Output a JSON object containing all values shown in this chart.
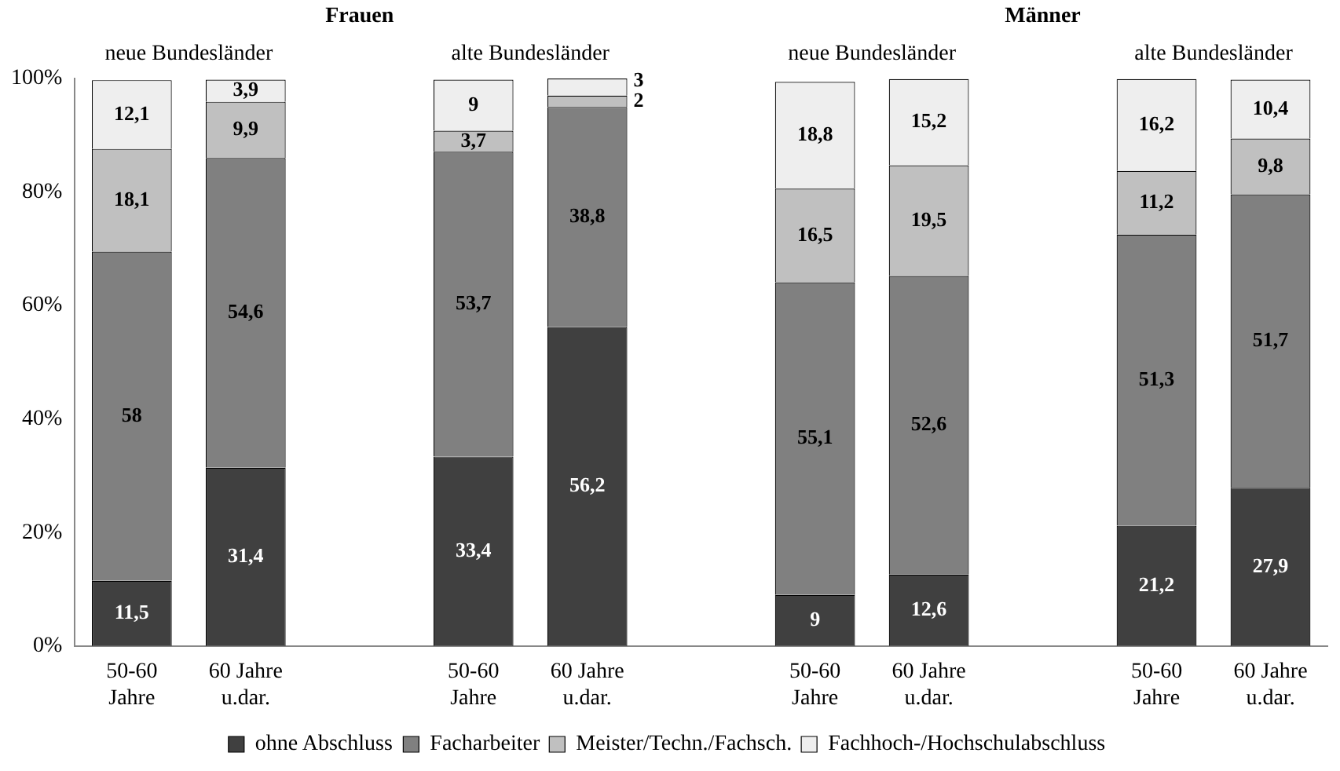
{
  "chart_data": {
    "type": "bar",
    "stacked": true,
    "categories": [
      "50-60 Jahre",
      "60 Jahre u.dar.",
      null,
      "50-60 Jahre",
      "60 Jahre u.dar.",
      null,
      "50-60 Jahre",
      "60 Jahre u.dar.",
      null,
      "50-60 Jahre",
      "60 Jahre u.dar."
    ],
    "series": [
      {
        "name": "ohne Abschluss",
        "color": "#404040",
        "values": [
          11.5,
          31.4,
          null,
          33.4,
          56.2,
          null,
          9,
          12.6,
          null,
          21.2,
          27.9
        ],
        "value_labels": [
          "11,5",
          "31,4",
          null,
          "33,4",
          "56,2",
          null,
          "9",
          "12,6",
          null,
          "21,2",
          "27,9"
        ]
      },
      {
        "name": "Facharbeiter",
        "color": "#808080",
        "values": [
          58,
          54.6,
          null,
          53.7,
          38.8,
          null,
          55.1,
          52.6,
          null,
          51.3,
          51.7
        ],
        "value_labels": [
          "58",
          "54,6",
          null,
          "53,7",
          "38,8",
          null,
          "55,1",
          "52,6",
          null,
          "51,3",
          "51,7"
        ]
      },
      {
        "name": "Meister/Techn./Fachsch.",
        "color": "#c0c0c0",
        "values": [
          18.1,
          9.9,
          null,
          3.7,
          2,
          null,
          16.5,
          19.5,
          null,
          11.2,
          9.8
        ],
        "value_labels": [
          "18,1",
          "9,9",
          null,
          "3,7",
          "2",
          null,
          "16,5",
          "19,5",
          null,
          "11,2",
          "9,8"
        ]
      },
      {
        "name": "Fachhoch-/Hochschulabschluss",
        "color": "#eeeeee",
        "values": [
          12.1,
          3.9,
          null,
          9,
          3,
          null,
          18.8,
          15.2,
          null,
          16.2,
          10.4
        ],
        "value_labels": [
          "12,1",
          "3,9",
          null,
          "9",
          "3",
          null,
          "18,8",
          "15,2",
          null,
          "16,2",
          "10,4"
        ]
      }
    ],
    "ylim": [
      0,
      100
    ],
    "yticks": [
      {
        "value": 0,
        "label": "0%"
      },
      {
        "value": 20,
        "label": "20%"
      },
      {
        "value": 40,
        "label": "40%"
      },
      {
        "value": 60,
        "label": "60%"
      },
      {
        "value": 80,
        "label": "80%"
      },
      {
        "value": 100,
        "label": "100%"
      }
    ],
    "grid": false,
    "legend": "bottom",
    "annotations": [
      "Frauen",
      "Männer",
      "neue Bundesländer",
      "alte Bundesländer",
      "neue Bundesländer",
      "alte Bundesländer"
    ]
  }
}
